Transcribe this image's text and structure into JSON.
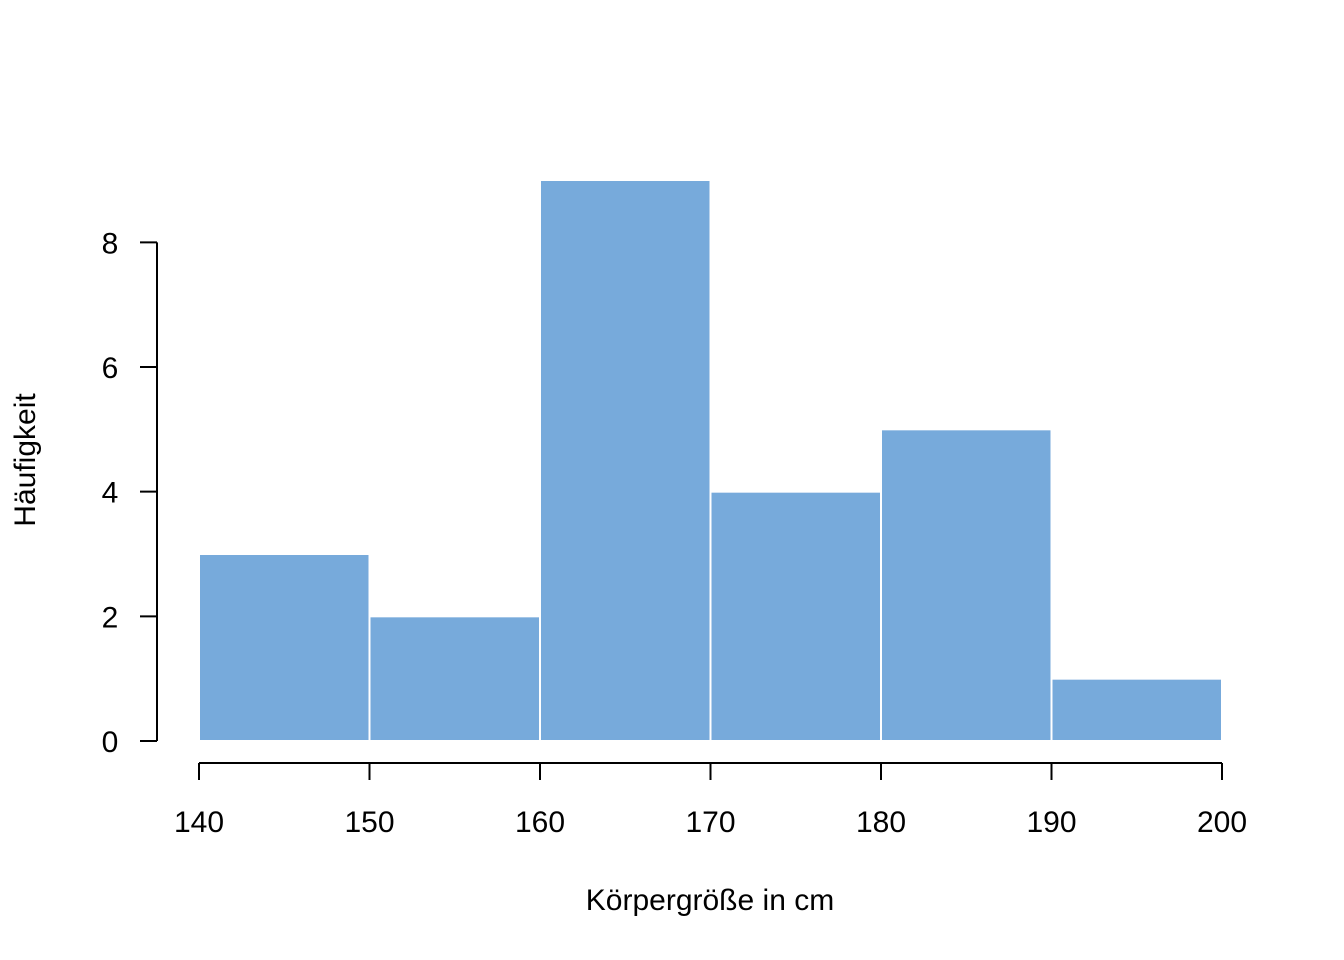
{
  "chart_data": {
    "type": "bar",
    "subtype": "histogram",
    "bins": [
      {
        "from": 140,
        "to": 150,
        "count": 3
      },
      {
        "from": 150,
        "to": 160,
        "count": 2
      },
      {
        "from": 160,
        "to": 170,
        "count": 9
      },
      {
        "from": 170,
        "to": 180,
        "count": 4
      },
      {
        "from": 180,
        "to": 190,
        "count": 5
      },
      {
        "from": 190,
        "to": 200,
        "count": 1
      }
    ],
    "title": "",
    "xlabel": "Körpergröße in cm",
    "ylabel": "Häufigkeit",
    "xlim": [
      140,
      200
    ],
    "ylim": [
      0,
      9
    ],
    "xticks": [
      140,
      150,
      160,
      170,
      180,
      190,
      200
    ],
    "yticks": [
      0,
      2,
      4,
      6,
      8
    ],
    "grid": false,
    "legend": "none",
    "colors": {
      "bar_fill": "#77AADB",
      "bar_border": "#FFFFFF",
      "axis": "#000000"
    }
  }
}
